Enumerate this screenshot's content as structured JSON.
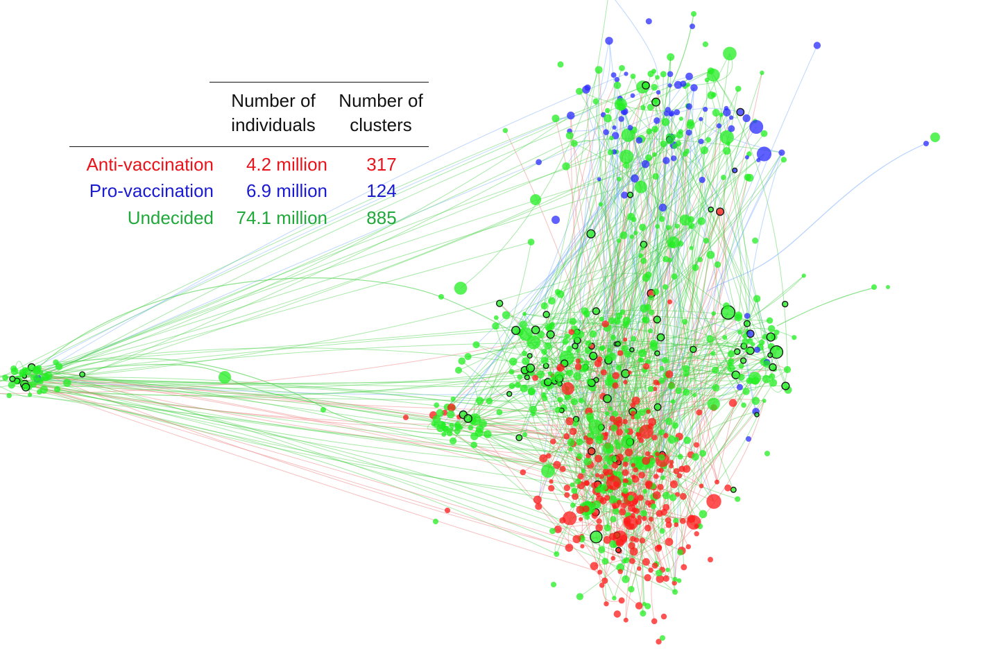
{
  "table": {
    "header": {
      "individuals": [
        "Number of",
        "individuals"
      ],
      "clusters": [
        "Number of",
        "clusters"
      ]
    },
    "rows": [
      {
        "label": "Anti-vaccination",
        "individuals": "4.2 million",
        "clusters": "317",
        "color": "#e8141c"
      },
      {
        "label": "Pro-vaccination",
        "individuals": "6.9 million",
        "clusters": "124",
        "color": "#1a1ad1"
      },
      {
        "label": "Undecided",
        "individuals": "74.1 million",
        "clusters": "885",
        "color": "#20a83a"
      }
    ]
  },
  "network": {
    "node_colors": {
      "anti": "#ff1a1a",
      "pro": "#2b2bff",
      "undecided": "#22ee22"
    },
    "edge_colors": {
      "anti": "#f08080",
      "pro": "#7fb0ff",
      "undecided": "#3fcf3f"
    }
  }
}
